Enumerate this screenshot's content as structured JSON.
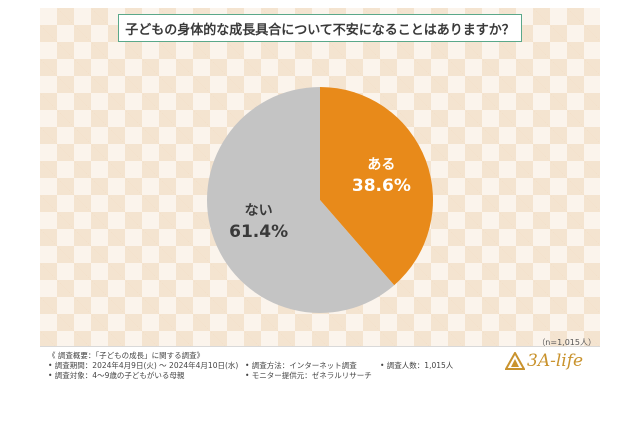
{
  "title": "子どもの身体的な成長具合について不安になることはありますか？",
  "colors": {
    "aru": "#e88a1a",
    "nai": "#c4c4c4",
    "accent": "#5aa88a"
  },
  "chart_data": {
    "type": "pie",
    "title": "子どもの身体的な成長具合について不安になることはありますか？",
    "slices": [
      {
        "label": "ある",
        "value": 38.6,
        "display": "38.6%",
        "color": "#e88a1a"
      },
      {
        "label": "ない",
        "value": 61.4,
        "display": "61.4%",
        "color": "#c4c4c4"
      }
    ],
    "start": "12 o'clock",
    "direction": "clockwise"
  },
  "sample_note": "（n=1,015人）",
  "footer": {
    "survey_overview": "《 調査概要：「子どもの成長」に関する調査》",
    "period": "• 調査期間：2024年4月9日(火) ～ 2024年4月10日(水)",
    "target": "• 調査対象：4～9歳の子どもがいる母親",
    "method": "• 調査方法：インターネット調査",
    "provider": "• モニター提供元：ゼネラルリサーチ",
    "count": "• 調査人数：1,015人"
  },
  "logo": {
    "text": "3A-life",
    "icon": "triangle-logo-icon"
  }
}
